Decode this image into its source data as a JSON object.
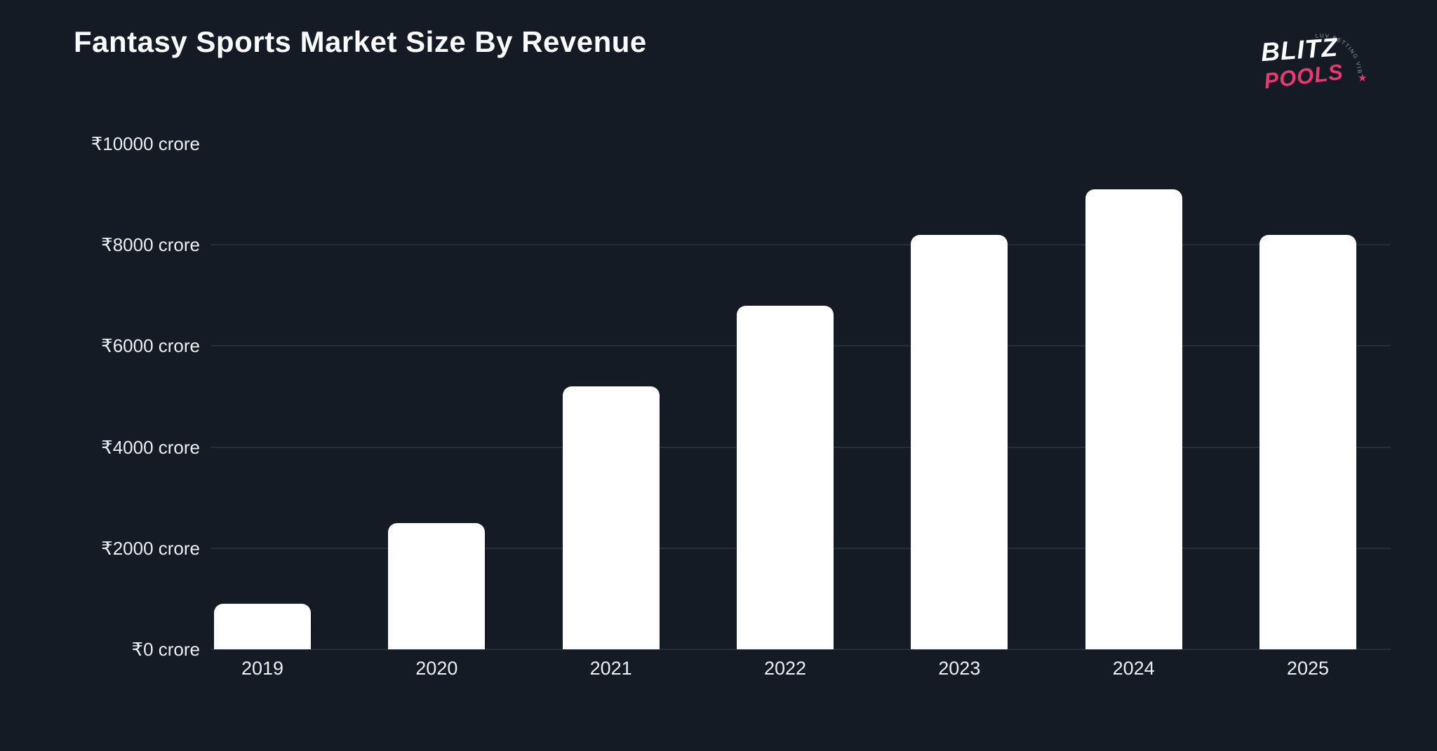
{
  "page": {
    "background_color": "#141b24",
    "text_color": "#eceff2",
    "gridline_color": "#262e3b"
  },
  "header": {
    "title": "Fantasy Sports Market Size By Revenue"
  },
  "logo": {
    "word_top": "BLITZ",
    "word_bottom": "POOLS",
    "arc_text": "LUV BETTING VIBES",
    "star": "★",
    "color_top": "#ffffff",
    "color_bottom": "#e8396f"
  },
  "chart_data": {
    "type": "bar",
    "title": "Fantasy Sports Market Size By Revenue",
    "categories": [
      "2019",
      "2020",
      "2021",
      "2022",
      "2023",
      "2024",
      "2025"
    ],
    "values": [
      900,
      2500,
      5200,
      6800,
      8200,
      9100,
      8200
    ],
    "unit": "crore (₹)",
    "xlabel": "",
    "ylabel": "",
    "ylim": [
      0,
      10000
    ],
    "y_ticks": [
      0,
      2000,
      4000,
      6000,
      8000,
      10000
    ],
    "y_tick_labels": [
      "₹0 crore",
      "₹2000 crore",
      "₹4000 crore",
      "₹6000 crore",
      "₹8000 crore",
      "₹10000 crore"
    ],
    "grid": "horizontal lines at 0, 2000, 4000, 6000, 8000; none at 10000",
    "bar_color": "#ffffff",
    "legend": "none"
  }
}
